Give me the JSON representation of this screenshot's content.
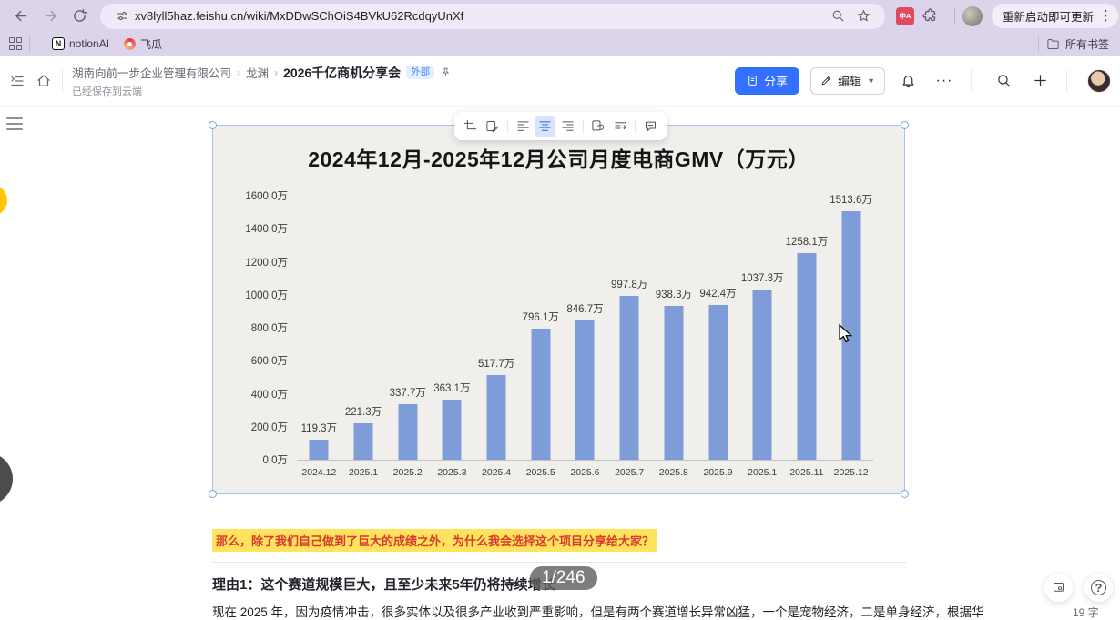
{
  "browser": {
    "url": "xv8lyll5haz.feishu.cn/wiki/MxDDwSChOiS4BVkU62RcdqyUnXf",
    "translate_ext_label": "中A",
    "update_button": "重新启动即可更新",
    "bookmarks": {
      "items": [
        "notionAI",
        "飞瓜"
      ],
      "all_bookmarks": "所有书签"
    }
  },
  "header": {
    "breadcrumb": {
      "items": [
        "湖南向前一步企业管理有限公司",
        "龙渊",
        "2026千亿商机分享会"
      ],
      "separator": "›"
    },
    "external_badge": "外部",
    "save_status": "已经保存到云端",
    "share_label": "分享",
    "edit_label": "编辑"
  },
  "chart_data": {
    "type": "bar",
    "title": "2024年12月-2025年12月公司月度电商GMV（万元）",
    "categories": [
      "2024.12",
      "2025.1",
      "2025.2",
      "2025.3",
      "2025.4",
      "2025.5",
      "2025.6",
      "2025.7",
      "2025.8",
      "2025.9",
      "2025.1",
      "2025.11",
      "2025.12"
    ],
    "values": [
      119.3,
      221.3,
      337.7,
      363.1,
      517.7,
      796.1,
      846.7,
      997.8,
      938.3,
      942.4,
      1037.3,
      1258.1,
      1513.6
    ],
    "value_labels": [
      "119.3万",
      "221.3万",
      "337.7万",
      "363.1万",
      "517.7万",
      "796.1万",
      "846.7万",
      "997.8万",
      "938.3万",
      "942.4万",
      "1037.3万",
      "1258.1万",
      "1513.6万"
    ],
    "ylabels": [
      "0.0万",
      "200.0万",
      "400.0万",
      "600.0万",
      "800.0万",
      "1000.0万",
      "1200.0万",
      "1400.0万",
      "1600.0万"
    ],
    "ylim": [
      0,
      1600
    ],
    "xlabel": "",
    "ylabel": "",
    "grid": "off",
    "legend": "none",
    "bar_color": "#7e9cd8"
  },
  "doc": {
    "highlight_text": "那么，除了我们自己做到了巨大的成绩之外，为什么我会选择这个项目分享给大家？",
    "reason_heading": "理由1：这个赛道规模巨大，且至少未来5年仍将持续增长",
    "page_badge": "1/246",
    "paragraph": "现在 2025 年，因为疫情冲击，很多实体以及很多产业收到严重影响，但是有两个赛道增长异常凶猛，一个是宠物经济，二是单身经济，根据华",
    "word_count": "19 字"
  },
  "colors": {
    "accent_blue": "#3370ff",
    "chrome_theme": "#dcd4ea",
    "highlight_yellow": "#ffe35c",
    "highlight_red": "#d83931",
    "bar_blue": "#7e9cd8"
  }
}
